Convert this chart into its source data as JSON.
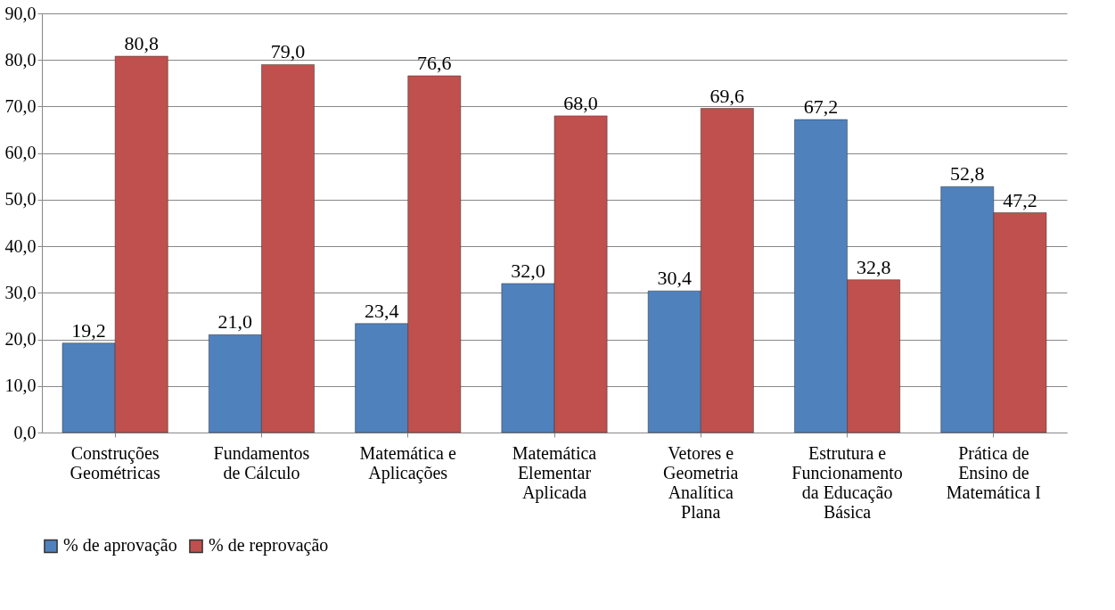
{
  "chart_data": {
    "type": "bar",
    "categories": [
      "Construções Geométricas",
      "Fundamentos de Cálculo",
      "Matemática e Aplicações",
      "Matemática Elementar Aplicada",
      "Vetores e Geometria Analítica Plana",
      "Estrutura e Funcionamento da Educação Básica",
      "Prática de Ensino de Matemática I"
    ],
    "series": [
      {
        "name": "% de aprovação",
        "color": "#4f81bd",
        "values": [
          19.2,
          21.0,
          23.4,
          32.0,
          30.4,
          67.2,
          52.8
        ],
        "value_labels": [
          "19,2",
          "21,0",
          "23,4",
          "32,0",
          "30,4",
          "67,2",
          "52,8"
        ]
      },
      {
        "name": "% de reprovação",
        "color": "#c0504d",
        "values": [
          80.8,
          79.0,
          76.6,
          68.0,
          69.6,
          32.8,
          47.2
        ],
        "value_labels": [
          "80,8",
          "79,0",
          "76,6",
          "68,0",
          "69,6",
          "32,8",
          "47,2"
        ]
      }
    ],
    "ylim": [
      0,
      90
    ],
    "yticks": [
      {
        "value": 0,
        "label": "0,0"
      },
      {
        "value": 10,
        "label": "10,0"
      },
      {
        "value": 20,
        "label": "20,0"
      },
      {
        "value": 30,
        "label": "30,0"
      },
      {
        "value": 40,
        "label": "40,0"
      },
      {
        "value": 50,
        "label": "50,0"
      },
      {
        "value": 60,
        "label": "60,0"
      },
      {
        "value": 70,
        "label": "70,0"
      },
      {
        "value": 80,
        "label": "80,0"
      },
      {
        "value": 90,
        "label": "90,0"
      }
    ],
    "grid": "y",
    "legend": "bottom"
  }
}
